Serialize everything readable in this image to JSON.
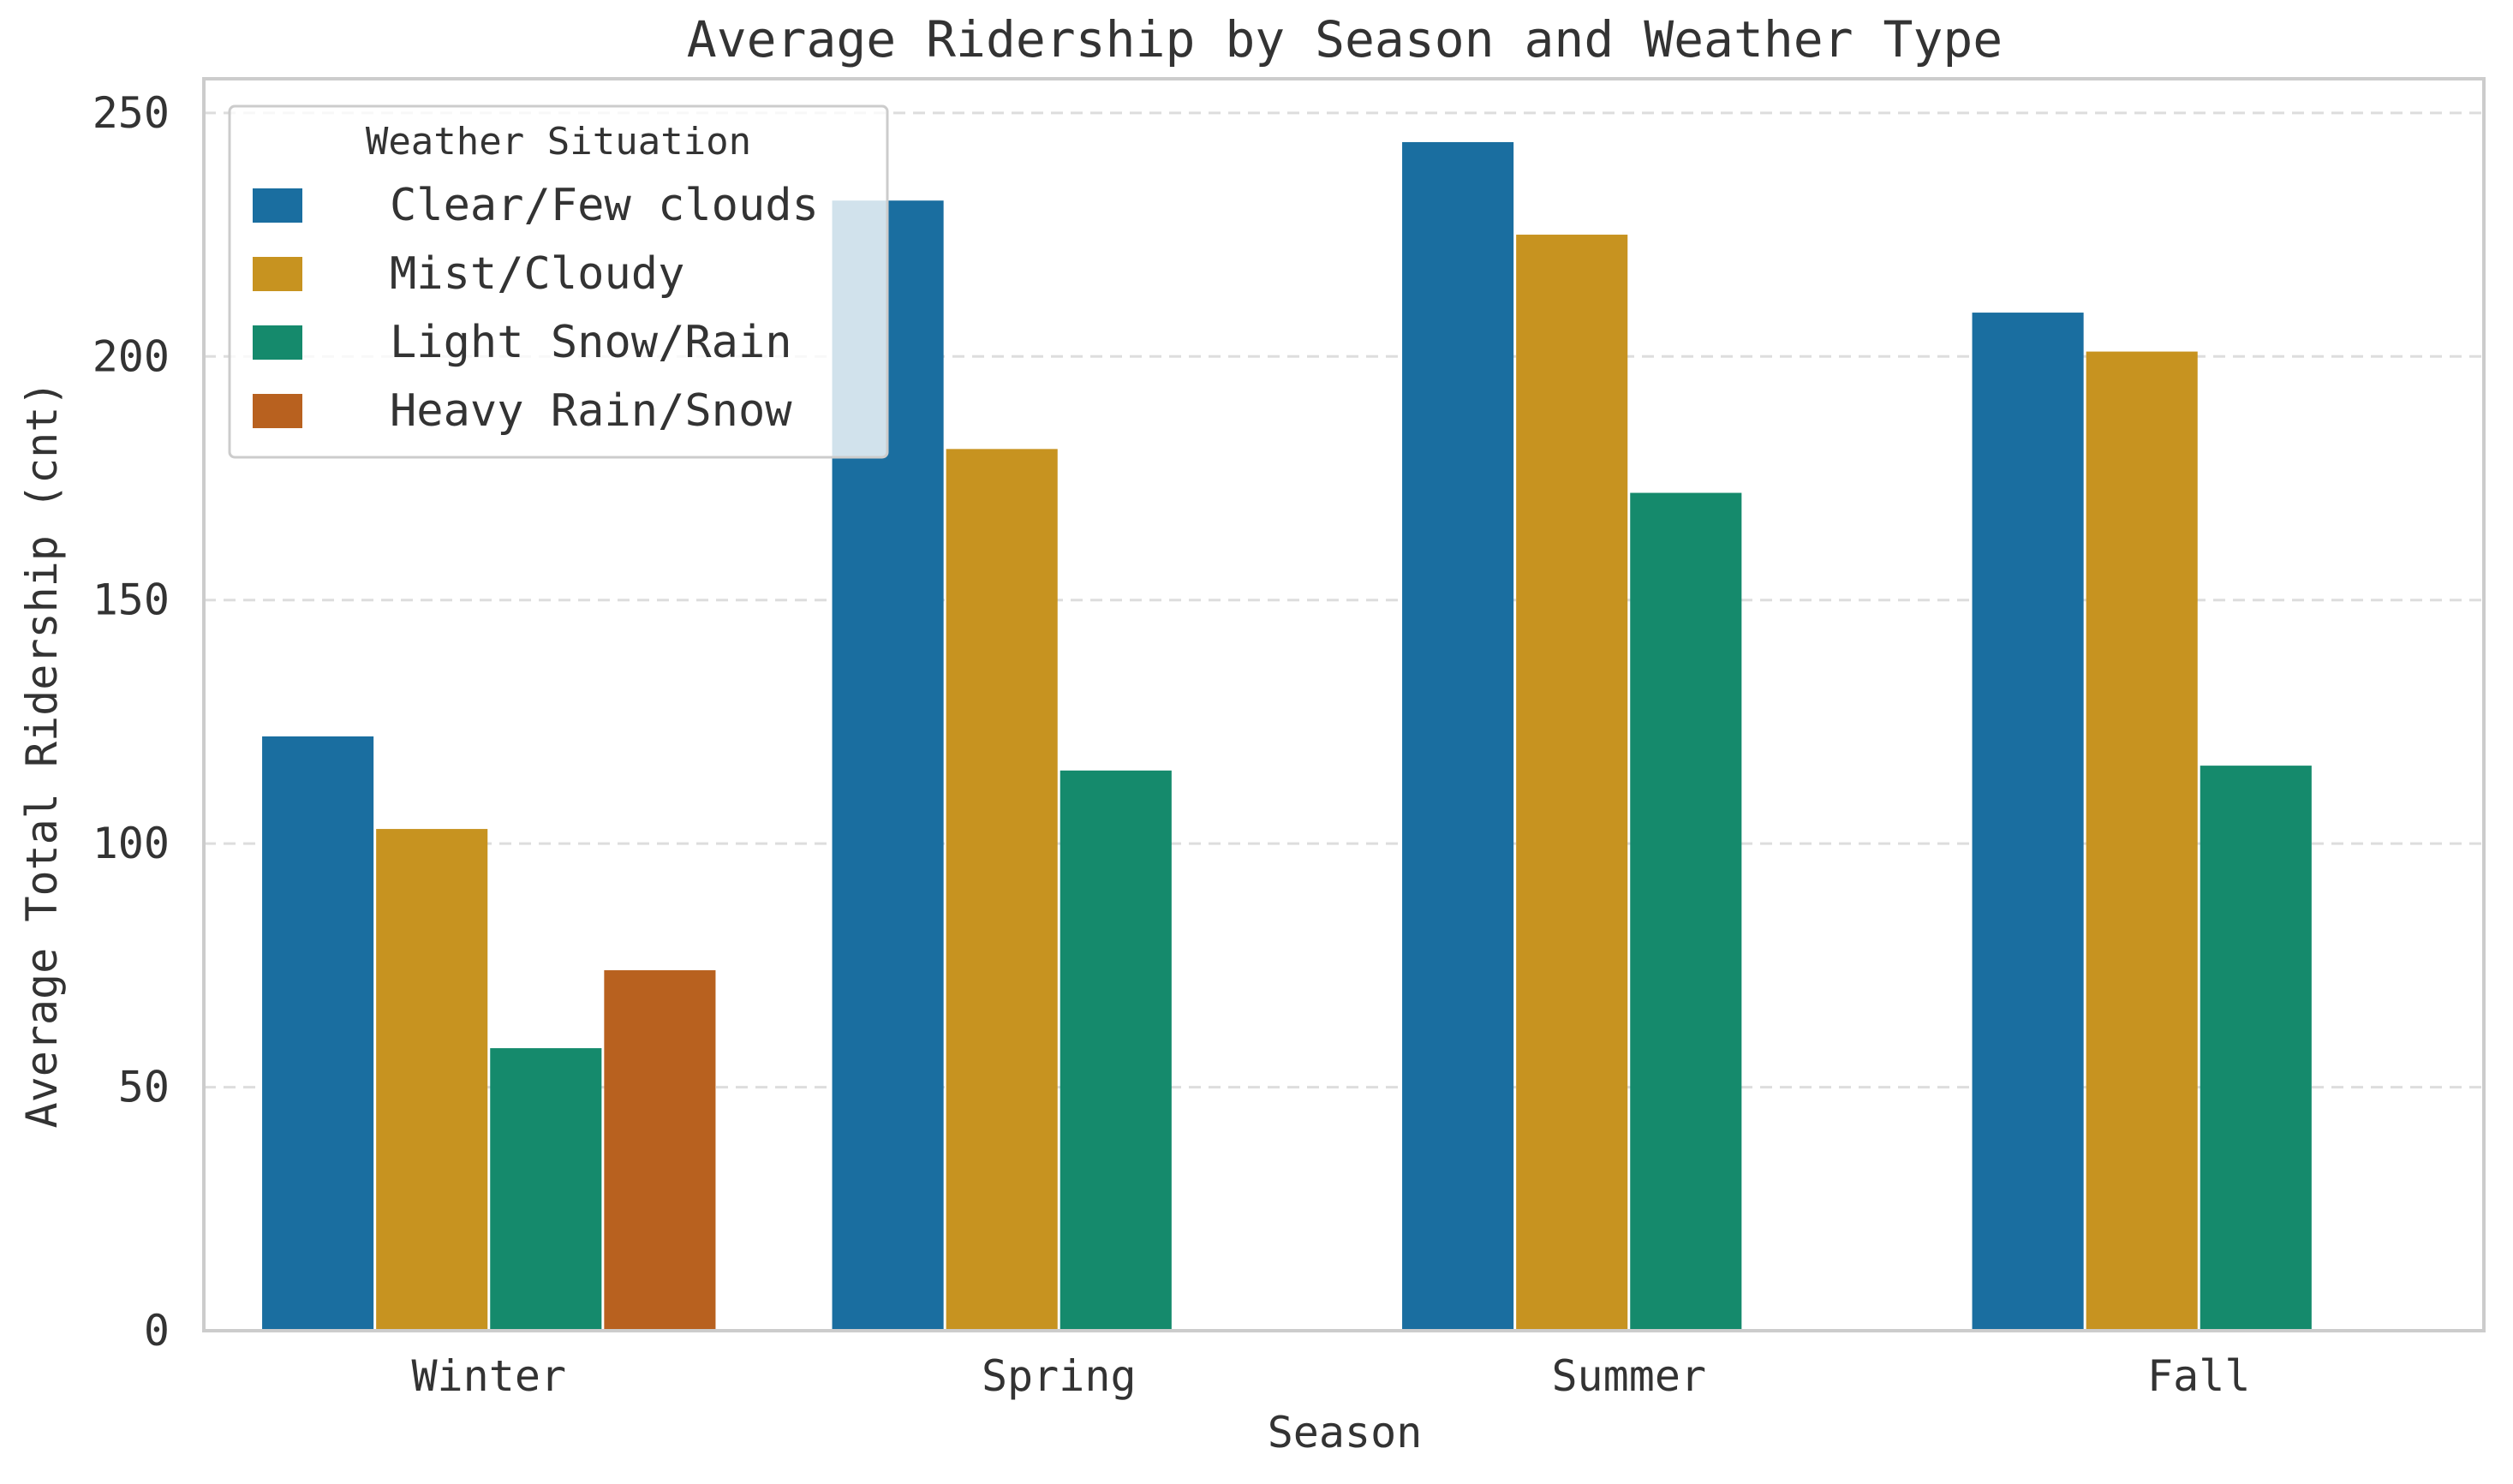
{
  "chart_data": {
    "type": "bar",
    "title": "Average Ridership by Season and Weather Type",
    "xlabel": "Season",
    "ylabel": "Average Total Ridership (cnt)",
    "categories": [
      "Winter",
      "Spring",
      "Summer",
      "Fall"
    ],
    "ylim": [
      0,
      257
    ],
    "yticks": [
      0,
      50,
      100,
      150,
      200,
      250
    ],
    "grid": "y-dashed",
    "legend": {
      "title": "Weather Situation",
      "placement": "top-left"
    },
    "series": [
      {
        "name": "Clear/Few clouds",
        "color": "#1a6ea0",
        "values": [
          122,
          232,
          244,
          209
        ]
      },
      {
        "name": "Mist/Cloudy",
        "color": "#c79320",
        "values": [
          103,
          181,
          225,
          201
        ]
      },
      {
        "name": "Light Snow/Rain",
        "color": "#158a6c",
        "values": [
          58,
          115,
          172,
          116
        ]
      },
      {
        "name": "Heavy Rain/Snow",
        "color": "#b8611f",
        "values": [
          74,
          null,
          null,
          null
        ]
      }
    ]
  }
}
